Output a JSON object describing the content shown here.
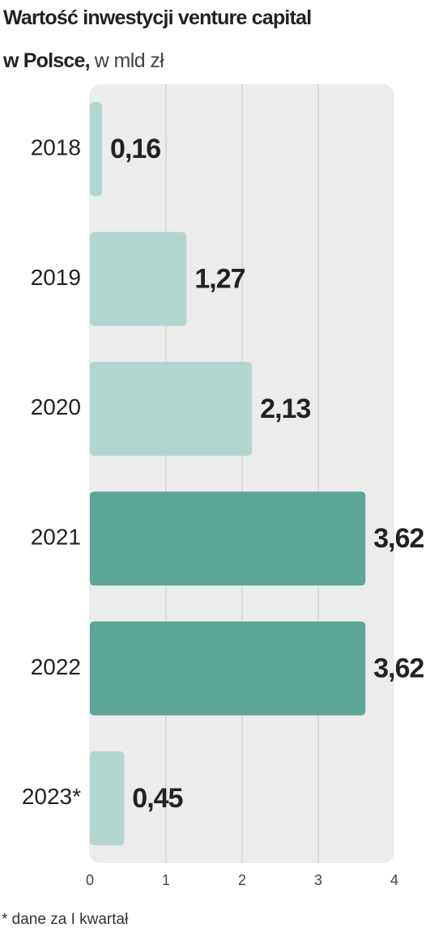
{
  "chart_data": {
    "type": "bar",
    "orientation": "horizontal",
    "title": [
      "Wartość inwestycji venture capital",
      "w Polsce,"
    ],
    "subtitle": "w mld zł",
    "categories": [
      "2018",
      "2019",
      "2020",
      "2021",
      "2022",
      "2023*"
    ],
    "values": [
      0.16,
      1.27,
      2.13,
      3.62,
      3.62,
      0.45
    ],
    "value_labels": [
      "0,16",
      "1,27",
      "2,13",
      "3,62",
      "3,62",
      "0,45"
    ],
    "colors": [
      "#b3d5cf",
      "#b3d5cf",
      "#b3d5cf",
      "#5ba697",
      "#5ba697",
      "#b3d5cf"
    ],
    "xlim": [
      0,
      4
    ],
    "xticks": [
      0,
      1,
      2,
      3,
      4
    ],
    "grid": true,
    "footnote": "* dane za I kwartał"
  }
}
